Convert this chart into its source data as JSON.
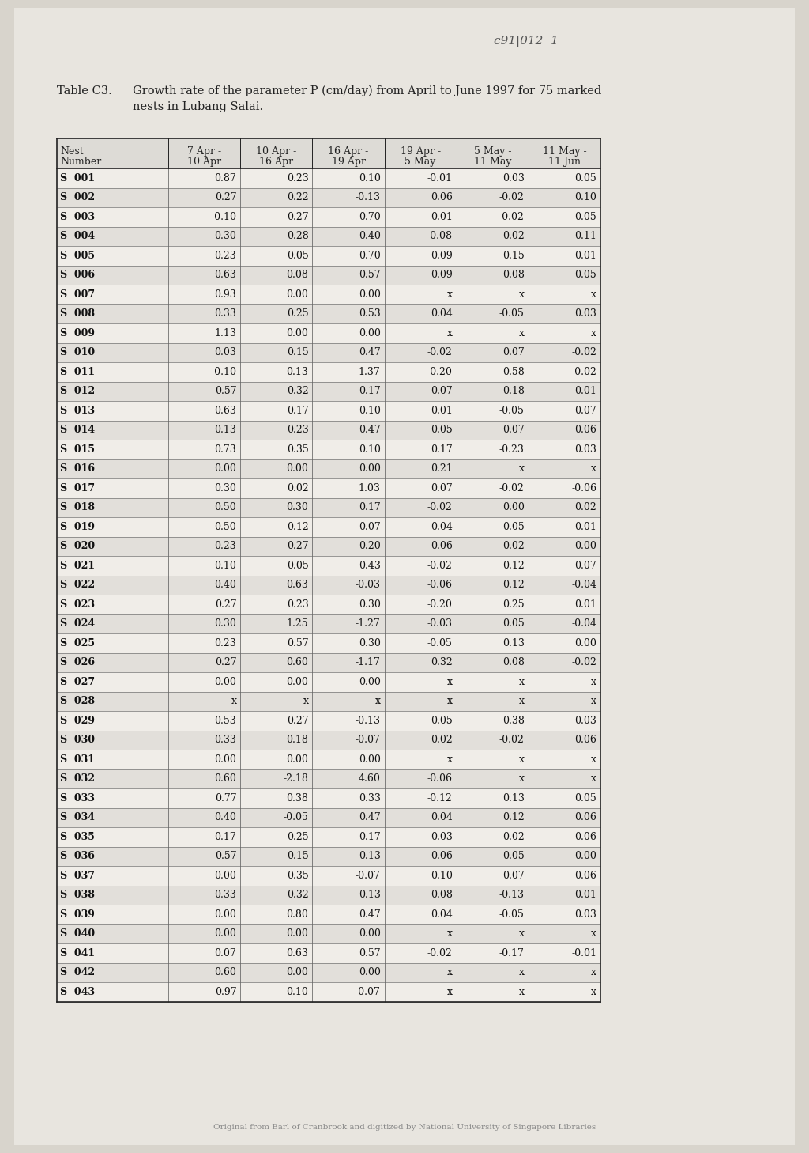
{
  "title_label": "Table C3.",
  "title_desc": "Growth rate of the parameter P (cm/day) from April to June 1997 for 75 marked",
  "title_desc2": "nests in Lubang Salai.",
  "caption": "Original from Earl of Cranbrook and digitized by National University of Singapore Libraries",
  "watermark": "c91|012  1",
  "col_headers_line1": [
    "Nest",
    "7 Apr -",
    "10 Apr -",
    "16 Apr -",
    "19 Apr -",
    "5 May -",
    "11 May -"
  ],
  "col_headers_line2": [
    "Number",
    "10 Apr",
    "16 Apr",
    "19 Apr",
    "5 May",
    "11 May",
    "11 Jun"
  ],
  "rows": [
    [
      "S  001",
      "0.87",
      "0.23",
      "0.10",
      "-0.01",
      "0.03",
      "0.05"
    ],
    [
      "S  002",
      "0.27",
      "0.22",
      "-0.13",
      "0.06",
      "-0.02",
      "0.10"
    ],
    [
      "S  003",
      "-0.10",
      "0.27",
      "0.70",
      "0.01",
      "-0.02",
      "0.05"
    ],
    [
      "S  004",
      "0.30",
      "0.28",
      "0.40",
      "-0.08",
      "0.02",
      "0.11"
    ],
    [
      "S  005",
      "0.23",
      "0.05",
      "0.70",
      "0.09",
      "0.15",
      "0.01"
    ],
    [
      "S  006",
      "0.63",
      "0.08",
      "0.57",
      "0.09",
      "0.08",
      "0.05"
    ],
    [
      "S  007",
      "0.93",
      "0.00",
      "0.00",
      "x",
      "x",
      "x"
    ],
    [
      "S  008",
      "0.33",
      "0.25",
      "0.53",
      "0.04",
      "-0.05",
      "0.03"
    ],
    [
      "S  009",
      "1.13",
      "0.00",
      "0.00",
      "x",
      "x",
      "x"
    ],
    [
      "S  010",
      "0.03",
      "0.15",
      "0.47",
      "-0.02",
      "0.07",
      "-0.02"
    ],
    [
      "S  011",
      "-0.10",
      "0.13",
      "1.37",
      "-0.20",
      "0.58",
      "-0.02"
    ],
    [
      "S  012",
      "0.57",
      "0.32",
      "0.17",
      "0.07",
      "0.18",
      "0.01"
    ],
    [
      "S  013",
      "0.63",
      "0.17",
      "0.10",
      "0.01",
      "-0.05",
      "0.07"
    ],
    [
      "S  014",
      "0.13",
      "0.23",
      "0.47",
      "0.05",
      "0.07",
      "0.06"
    ],
    [
      "S  015",
      "0.73",
      "0.35",
      "0.10",
      "0.17",
      "-0.23",
      "0.03"
    ],
    [
      "S  016",
      "0.00",
      "0.00",
      "0.00",
      "0.21",
      "x",
      "x"
    ],
    [
      "S  017",
      "0.30",
      "0.02",
      "1.03",
      "0.07",
      "-0.02",
      "-0.06"
    ],
    [
      "S  018",
      "0.50",
      "0.30",
      "0.17",
      "-0.02",
      "0.00",
      "0.02"
    ],
    [
      "S  019",
      "0.50",
      "0.12",
      "0.07",
      "0.04",
      "0.05",
      "0.01"
    ],
    [
      "S  020",
      "0.23",
      "0.27",
      "0.20",
      "0.06",
      "0.02",
      "0.00"
    ],
    [
      "S  021",
      "0.10",
      "0.05",
      "0.43",
      "-0.02",
      "0.12",
      "0.07"
    ],
    [
      "S  022",
      "0.40",
      "0.63",
      "-0.03",
      "-0.06",
      "0.12",
      "-0.04"
    ],
    [
      "S  023",
      "0.27",
      "0.23",
      "0.30",
      "-0.20",
      "0.25",
      "0.01"
    ],
    [
      "S  024",
      "0.30",
      "1.25",
      "-1.27",
      "-0.03",
      "0.05",
      "-0.04"
    ],
    [
      "S  025",
      "0.23",
      "0.57",
      "0.30",
      "-0.05",
      "0.13",
      "0.00"
    ],
    [
      "S  026",
      "0.27",
      "0.60",
      "-1.17",
      "0.32",
      "0.08",
      "-0.02"
    ],
    [
      "S  027",
      "0.00",
      "0.00",
      "0.00",
      "x",
      "x",
      "x"
    ],
    [
      "S  028",
      "x",
      "x",
      "x",
      "x",
      "x",
      "x"
    ],
    [
      "S  029",
      "0.53",
      "0.27",
      "-0.13",
      "0.05",
      "0.38",
      "0.03"
    ],
    [
      "S  030",
      "0.33",
      "0.18",
      "-0.07",
      "0.02",
      "-0.02",
      "0.06"
    ],
    [
      "S  031",
      "0.00",
      "0.00",
      "0.00",
      "x",
      "x",
      "x"
    ],
    [
      "S  032",
      "0.60",
      "-2.18",
      "4.60",
      "-0.06",
      "x",
      "x"
    ],
    [
      "S  033",
      "0.77",
      "0.38",
      "0.33",
      "-0.12",
      "0.13",
      "0.05"
    ],
    [
      "S  034",
      "0.40",
      "-0.05",
      "0.47",
      "0.04",
      "0.12",
      "0.06"
    ],
    [
      "S  035",
      "0.17",
      "0.25",
      "0.17",
      "0.03",
      "0.02",
      "0.06"
    ],
    [
      "S  036",
      "0.57",
      "0.15",
      "0.13",
      "0.06",
      "0.05",
      "0.00"
    ],
    [
      "S  037",
      "0.00",
      "0.35",
      "-0.07",
      "0.10",
      "0.07",
      "0.06"
    ],
    [
      "S  038",
      "0.33",
      "0.32",
      "0.13",
      "0.08",
      "-0.13",
      "0.01"
    ],
    [
      "S  039",
      "0.00",
      "0.80",
      "0.47",
      "0.04",
      "-0.05",
      "0.03"
    ],
    [
      "S  040",
      "0.00",
      "0.00",
      "0.00",
      "x",
      "x",
      "x"
    ],
    [
      "S  041",
      "0.07",
      "0.63",
      "0.57",
      "-0.02",
      "-0.17",
      "-0.01"
    ],
    [
      "S  042",
      "0.60",
      "0.00",
      "0.00",
      "x",
      "x",
      "x"
    ],
    [
      "S  043",
      "0.97",
      "0.10",
      "-0.07",
      "x",
      "x",
      "x"
    ]
  ],
  "bg_color": "#d8d4cc",
  "paper_color": "#e8e5df",
  "line_color": "#555555",
  "thick_line_color": "#222222",
  "font_size_title": 10.5,
  "font_size_table": 9.0,
  "font_size_caption": 7.5,
  "font_size_watermark": 11,
  "col_widths_rel": [
    1.55,
    1.0,
    1.0,
    1.0,
    1.0,
    1.0,
    1.0
  ]
}
